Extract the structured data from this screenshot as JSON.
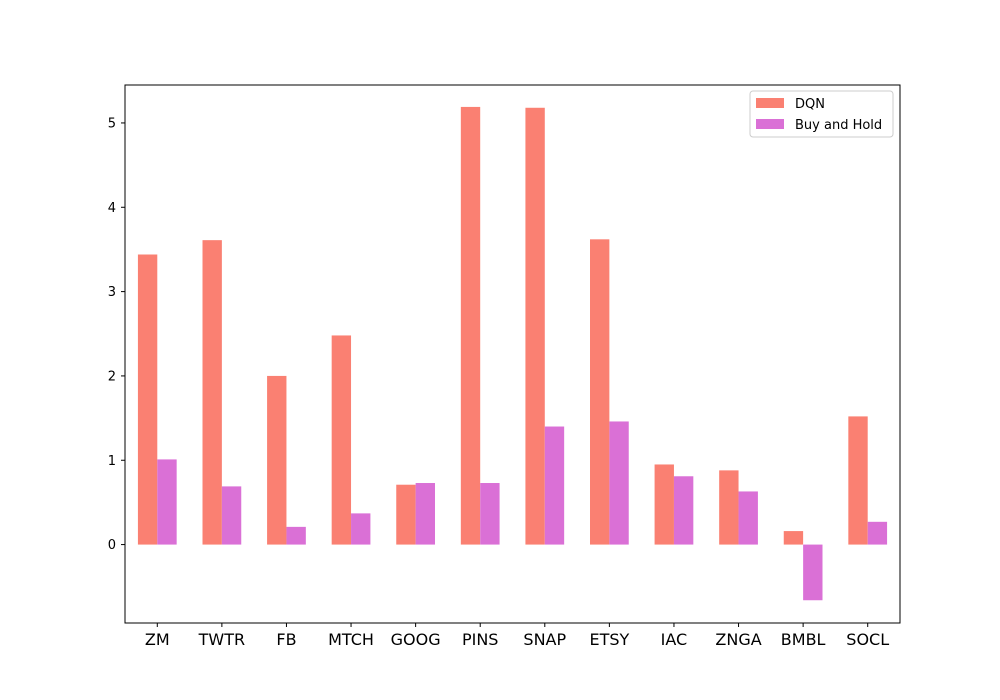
{
  "chart_data": {
    "type": "bar",
    "categories": [
      "ZM",
      "TWTR",
      "FB",
      "MTCH",
      "GOOG",
      "PINS",
      "SNAP",
      "ETSY",
      "IAC",
      "ZNGA",
      "BMBL",
      "SOCL"
    ],
    "series": [
      {
        "name": "DQN",
        "color": "#fa8072",
        "values": [
          3.44,
          3.61,
          2.0,
          2.48,
          0.71,
          5.19,
          5.18,
          3.62,
          0.95,
          0.88,
          0.16,
          1.52
        ]
      },
      {
        "name": "Buy and Hold",
        "color": "#da70d6",
        "values": [
          1.01,
          0.69,
          0.21,
          0.37,
          0.73,
          0.73,
          1.4,
          1.46,
          0.81,
          0.63,
          -0.66,
          0.27
        ]
      }
    ],
    "ylim": [
      -0.93,
      5.45
    ],
    "yticks": [
      0,
      1,
      2,
      3,
      4,
      5
    ],
    "ytick_labels": [
      "0",
      "1",
      "2",
      "3",
      "4",
      "5"
    ],
    "grid": false,
    "legend_position": "top-right"
  }
}
